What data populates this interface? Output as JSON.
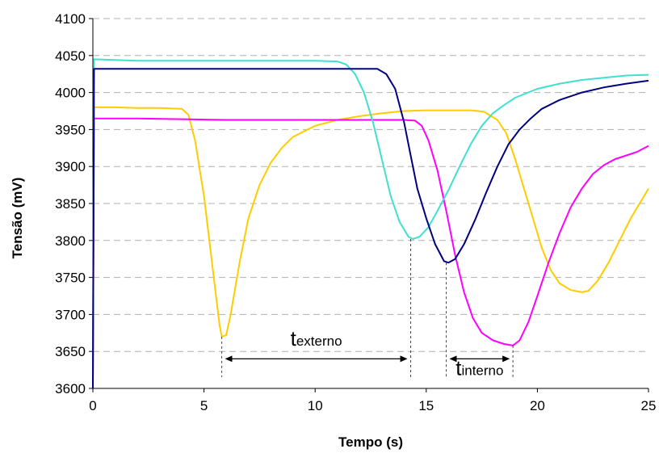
{
  "chart_data": {
    "type": "line",
    "title": "",
    "xlabel": "Tempo (s)",
    "ylabel": "Tensão (mV)",
    "xlim": [
      0,
      25
    ],
    "ylim": [
      3600,
      4100
    ],
    "x_ticks": [
      0,
      5,
      10,
      15,
      20,
      25
    ],
    "y_ticks": [
      3600,
      3650,
      3700,
      3750,
      3800,
      3850,
      3900,
      3950,
      4000,
      4050,
      4100
    ],
    "grid": "horizontal dashed",
    "legend": "none",
    "series": [
      {
        "color": "#ffcc00",
        "points": [
          [
            0,
            3600
          ],
          [
            0.05,
            3980
          ],
          [
            1,
            3980
          ],
          [
            2,
            3979
          ],
          [
            3,
            3979
          ],
          [
            4,
            3978
          ],
          [
            4.3,
            3970
          ],
          [
            4.6,
            3935
          ],
          [
            5,
            3860
          ],
          [
            5.4,
            3760
          ],
          [
            5.7,
            3685
          ],
          [
            5.8,
            3670
          ],
          [
            6.0,
            3672
          ],
          [
            6.2,
            3700
          ],
          [
            6.6,
            3770
          ],
          [
            7.0,
            3830
          ],
          [
            7.5,
            3875
          ],
          [
            8,
            3905
          ],
          [
            8.5,
            3925
          ],
          [
            9,
            3940
          ],
          [
            10,
            3955
          ],
          [
            11,
            3963
          ],
          [
            12,
            3968
          ],
          [
            13,
            3972
          ],
          [
            14,
            3975
          ],
          [
            15,
            3976
          ],
          [
            16,
            3976
          ],
          [
            17,
            3976
          ],
          [
            17.6,
            3974
          ],
          [
            18.2,
            3963
          ],
          [
            18.6,
            3945
          ],
          [
            19,
            3910
          ],
          [
            19.4,
            3870
          ],
          [
            19.8,
            3830
          ],
          [
            20.2,
            3790
          ],
          [
            20.6,
            3760
          ],
          [
            21,
            3742
          ],
          [
            21.5,
            3733
          ],
          [
            22,
            3730
          ],
          [
            22.3,
            3732
          ],
          [
            22.7,
            3745
          ],
          [
            23.2,
            3770
          ],
          [
            23.7,
            3800
          ],
          [
            24.2,
            3830
          ],
          [
            24.6,
            3850
          ],
          [
            25,
            3870
          ]
        ]
      },
      {
        "color": "#ff00ff",
        "points": [
          [
            0,
            3600
          ],
          [
            0.05,
            3965
          ],
          [
            2,
            3965
          ],
          [
            4,
            3964
          ],
          [
            6,
            3963
          ],
          [
            8,
            3963
          ],
          [
            10,
            3963
          ],
          [
            12,
            3963
          ],
          [
            13,
            3963
          ],
          [
            14,
            3963
          ],
          [
            14.5,
            3962
          ],
          [
            14.8,
            3955
          ],
          [
            15.1,
            3935
          ],
          [
            15.5,
            3895
          ],
          [
            15.9,
            3840
          ],
          [
            16.3,
            3780
          ],
          [
            16.7,
            3730
          ],
          [
            17.1,
            3695
          ],
          [
            17.5,
            3675
          ],
          [
            18,
            3665
          ],
          [
            18.5,
            3660
          ],
          [
            18.9,
            3658
          ],
          [
            19.2,
            3665
          ],
          [
            19.6,
            3690
          ],
          [
            20,
            3725
          ],
          [
            20.5,
            3770
          ],
          [
            21,
            3810
          ],
          [
            21.5,
            3845
          ],
          [
            22,
            3870
          ],
          [
            22.5,
            3890
          ],
          [
            23,
            3902
          ],
          [
            23.5,
            3910
          ],
          [
            24,
            3915
          ],
          [
            24.5,
            3920
          ],
          [
            25,
            3928
          ]
        ]
      },
      {
        "color": "#40e0d0",
        "points": [
          [
            0,
            3600
          ],
          [
            0.05,
            4045
          ],
          [
            2,
            4043
          ],
          [
            4,
            4043
          ],
          [
            6,
            4043
          ],
          [
            8,
            4043
          ],
          [
            10,
            4043
          ],
          [
            11,
            4042
          ],
          [
            11.4,
            4038
          ],
          [
            11.8,
            4025
          ],
          [
            12.2,
            4000
          ],
          [
            12.6,
            3960
          ],
          [
            13,
            3910
          ],
          [
            13.4,
            3860
          ],
          [
            13.8,
            3825
          ],
          [
            14.2,
            3805
          ],
          [
            14.4,
            3802
          ],
          [
            14.7,
            3805
          ],
          [
            15.1,
            3818
          ],
          [
            15.5,
            3840
          ],
          [
            16,
            3868
          ],
          [
            16.5,
            3900
          ],
          [
            17,
            3930
          ],
          [
            17.5,
            3955
          ],
          [
            18,
            3972
          ],
          [
            18.5,
            3983
          ],
          [
            19,
            3993
          ],
          [
            20,
            4005
          ],
          [
            21,
            4012
          ],
          [
            22,
            4017
          ],
          [
            23,
            4020
          ],
          [
            24,
            4023
          ],
          [
            25,
            4024
          ]
        ]
      },
      {
        "color": "#000080",
        "points": [
          [
            0,
            3600
          ],
          [
            0.05,
            4032
          ],
          [
            2,
            4032
          ],
          [
            4,
            4032
          ],
          [
            6,
            4032
          ],
          [
            8,
            4032
          ],
          [
            10,
            4032
          ],
          [
            12,
            4032
          ],
          [
            12.8,
            4032
          ],
          [
            13.2,
            4025
          ],
          [
            13.6,
            4005
          ],
          [
            14,
            3960
          ],
          [
            14.3,
            3915
          ],
          [
            14.6,
            3870
          ],
          [
            15,
            3830
          ],
          [
            15.4,
            3795
          ],
          [
            15.8,
            3772
          ],
          [
            16.0,
            3770
          ],
          [
            16.3,
            3775
          ],
          [
            16.7,
            3795
          ],
          [
            17.2,
            3828
          ],
          [
            17.7,
            3865
          ],
          [
            18.2,
            3900
          ],
          [
            18.7,
            3930
          ],
          [
            19.2,
            3950
          ],
          [
            19.7,
            3965
          ],
          [
            20.2,
            3978
          ],
          [
            21,
            3990
          ],
          [
            22,
            4000
          ],
          [
            23,
            4007
          ],
          [
            24,
            4012
          ],
          [
            25,
            4016
          ]
        ]
      }
    ],
    "annotations": [
      {
        "label_t": "t",
        "label_sub": "externo",
        "x_start": 5.8,
        "x_end": 14.3,
        "y_text": 3658,
        "y_arrow": 3640,
        "drop_from": [
          3670,
          3802
        ]
      },
      {
        "label_t": "t",
        "label_sub": "interno",
        "x_start": 15.9,
        "x_end": 18.9,
        "y_text": 3618,
        "y_arrow": 3640,
        "drop_from": [
          3770,
          3658
        ]
      }
    ]
  }
}
